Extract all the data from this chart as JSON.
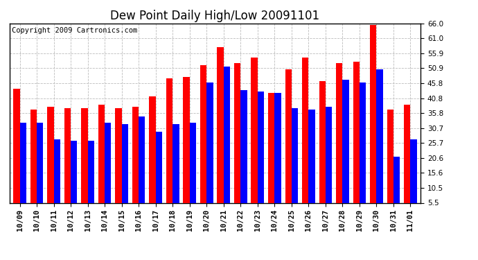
{
  "title": "Dew Point Daily High/Low 20091101",
  "copyright": "Copyright 2009 Cartronics.com",
  "dates": [
    "10/09",
    "10/10",
    "10/11",
    "10/12",
    "10/13",
    "10/14",
    "10/15",
    "10/16",
    "10/17",
    "10/18",
    "10/19",
    "10/20",
    "10/21",
    "10/22",
    "10/23",
    "10/24",
    "10/25",
    "10/26",
    "10/27",
    "10/28",
    "10/29",
    "10/30",
    "10/31",
    "11/01"
  ],
  "high_values": [
    44.0,
    37.0,
    38.0,
    37.5,
    37.5,
    38.5,
    37.5,
    38.0,
    41.5,
    47.5,
    48.0,
    52.0,
    58.0,
    52.5,
    54.5,
    42.5,
    50.5,
    54.5,
    46.5,
    52.5,
    53.0,
    65.5,
    37.0,
    38.5
  ],
  "low_values": [
    32.5,
    32.5,
    27.0,
    26.5,
    26.5,
    32.5,
    32.0,
    34.5,
    29.5,
    32.0,
    32.5,
    46.0,
    51.5,
    43.5,
    43.0,
    42.5,
    37.5,
    37.0,
    38.0,
    47.0,
    46.0,
    50.5,
    21.0,
    27.0
  ],
  "high_color": "#ff0000",
  "low_color": "#0000ff",
  "background_color": "#ffffff",
  "plot_background": "#ffffff",
  "grid_color": "#bbbbbb",
  "ylim": [
    5.5,
    66.0
  ],
  "yticks": [
    5.5,
    10.5,
    15.6,
    20.6,
    25.7,
    30.7,
    35.8,
    40.8,
    45.8,
    50.9,
    55.9,
    61.0,
    66.0
  ],
  "bar_width": 0.38,
  "title_fontsize": 12,
  "tick_fontsize": 7.5,
  "copyright_fontsize": 7.5
}
